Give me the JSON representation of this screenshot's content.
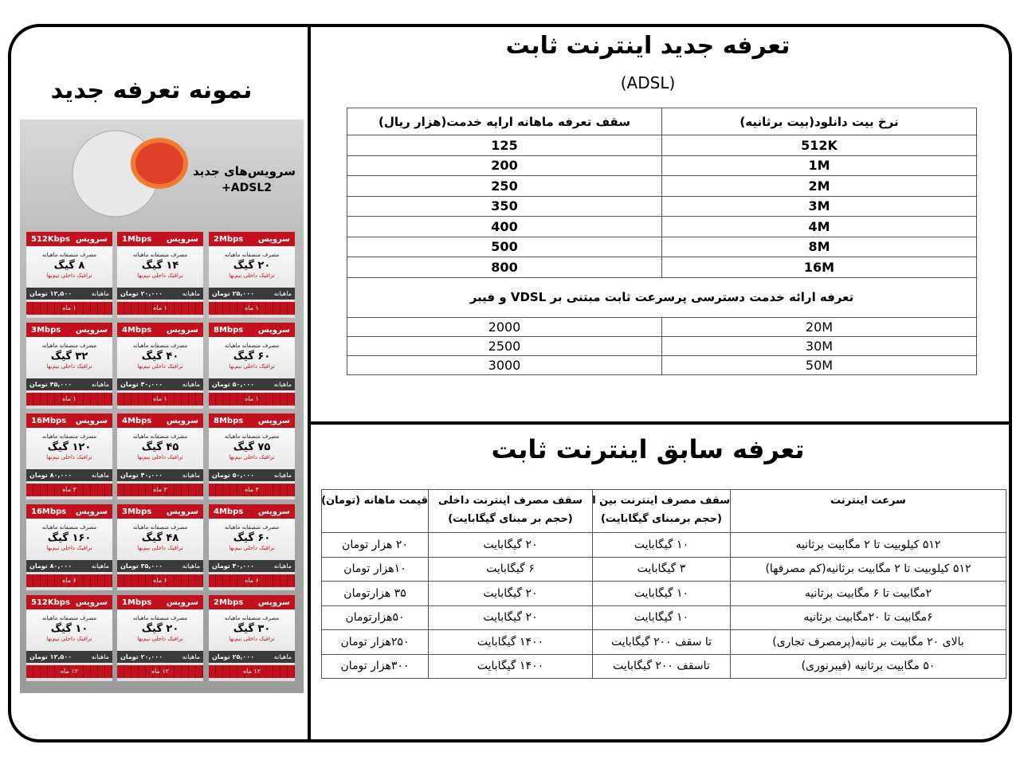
{
  "new_tariff": {
    "title": "تعرفه جدید اینترنت ثابت",
    "subtitle": "(ADSL)",
    "headers": [
      "نرخ بیت دانلود(بیت برثانیه)",
      "سقف تعرفه ماهانه ارایه خدمت(هزار ریال)"
    ],
    "rows": [
      [
        "512K",
        "125"
      ],
      [
        "1M",
        "200"
      ],
      [
        "2M",
        "250"
      ],
      [
        "3M",
        "350"
      ],
      [
        "4M",
        "400"
      ],
      [
        "8M",
        "500"
      ],
      [
        "16M",
        "800"
      ]
    ],
    "vdsl_title": "تعرفه ارائه خدمت دسترسی پرسرعت ثابت مبتنی بر VDSL و فیبر",
    "vdsl_rows": [
      [
        "20M",
        "2000"
      ],
      [
        "30M",
        "2500"
      ],
      [
        "50M",
        "3000"
      ]
    ]
  },
  "old_tariff": {
    "title": "تعرفه سابق اینترنت ثابت",
    "headers": [
      {
        "main": "سرعت اینترنت"
      },
      {
        "main": "سقف مصرف اینترنت بین الملل",
        "sub": "(حجم برمبنای گیگابایت)"
      },
      {
        "main": "سقف مصرف اینترنت داخلی",
        "sub": "(حجم بر مبنای گیگابایت)"
      },
      {
        "main": "قیمت ماهانه (تومان)"
      }
    ],
    "rows": [
      [
        "۵۱۲ کیلوبیت تا ۲ مگابیت برثانیه",
        "۱۰ گیگابایت",
        "۲۰ گیگابایت",
        "۲۰ هزار تومان"
      ],
      [
        "۵۱۲ کیلوبیت تا ۲ مگابیت برثانیه(کم مصرفها)",
        "۳ گیگابایت",
        "۶ گیگابایت",
        "۱۰هزار تومان"
      ],
      [
        "۲مگابیت تا ۶ مگابیت برثانیه",
        "۱۰ گیگابایت",
        "۲۰ گیگابایت",
        "۳۵ هزارتومان"
      ],
      [
        "۶مگابیت تا ۲۰مگابیت برثانیه",
        "۱۰ گیگابایت",
        "۲۰ گیگابایت",
        "۵۰هزارتومان"
      ],
      [
        "بالای ۲۰ مگابیت بر ثانیه(پرمصرف تجاری)",
        "تا سقف ۲۰۰ گیگابایت",
        "۱۴۰۰ گیگابایت",
        "۲۵۰هزار تومان"
      ],
      [
        "۵۰ مگابیت برثانیه (فیبرنوری)",
        "تاسقف ۲۰۰ گیگابایت",
        "۱۴۰۰ گیگابایت",
        "۳۰۰هزار تومان"
      ]
    ]
  },
  "sample": {
    "title": "نمونه تعرفه جدید",
    "promo": [
      "سرویس‌های جدید",
      "ADSL2+"
    ],
    "service_label": "سرویس",
    "usage_label": "مصرف منصفانه ماهیانه",
    "note": "ترافیک داخلی نیم‌بها",
    "price_label": "ماهیانه",
    "cards": [
      {
        "service": "512Kbps",
        "volume": "۸ گیگ",
        "price": "۱۲,۵۰۰ تومان",
        "period": "۱ ماه"
      },
      {
        "service": "1Mbps",
        "volume": "۱۴ گیگ",
        "price": "۲۰,۰۰۰ تومان",
        "period": "۱ ماه"
      },
      {
        "service": "2Mbps",
        "volume": "۲۰ گیگ",
        "price": "۲۵,۰۰۰ تومان",
        "period": "۱ ماه"
      },
      {
        "service": "3Mbps",
        "volume": "۳۲ گیگ",
        "price": "۳۵,۰۰۰ تومان",
        "period": "۱ ماه"
      },
      {
        "service": "4Mbps",
        "volume": "۴۰ گیگ",
        "price": "۴۰,۰۰۰ تومان",
        "period": "۱ ماه"
      },
      {
        "service": "8Mbps",
        "volume": "۶۰ گیگ",
        "price": "۵۰,۰۰۰ تومان",
        "period": "۱ ماه"
      },
      {
        "service": "16Mbps",
        "volume": "۱۲۰ گیگ",
        "price": "۸۰,۰۰۰ تومان",
        "period": "۳ ماه"
      },
      {
        "service": "4Mbps",
        "volume": "۴۵ گیگ",
        "price": "۴۰,۰۰۰ تومان",
        "period": "۳ ماه"
      },
      {
        "service": "8Mbps",
        "volume": "۷۵ گیگ",
        "price": "۵۰,۰۰۰ تومان",
        "period": "۳ ماه"
      },
      {
        "service": "16Mbps",
        "volume": "۱۶۰ گیگ",
        "price": "۸۰,۰۰۰ تومان",
        "period": "۶ ماه"
      },
      {
        "service": "3Mbps",
        "volume": "۴۸ گیگ",
        "price": "۳۵,۰۰۰ تومان",
        "period": "۶ ماه"
      },
      {
        "service": "4Mbps",
        "volume": "۶۰ گیگ",
        "price": "۴۰,۰۰۰ تومان",
        "period": "۶ ماه"
      },
      {
        "service": "512Kbps",
        "volume": "۱۰ گیگ",
        "price": "۱۲,۵۰۰ تومان",
        "period": "۱۲ ماه"
      },
      {
        "service": "1Mbps",
        "volume": "۲۰ گیگ",
        "price": "۲۰,۰۰۰ تومان",
        "period": "۱۲ ماه"
      },
      {
        "service": "2Mbps",
        "volume": "۳۰ گیگ",
        "price": "۲۵,۰۰۰ تومان",
        "period": "۱۲ ماه"
      }
    ]
  }
}
